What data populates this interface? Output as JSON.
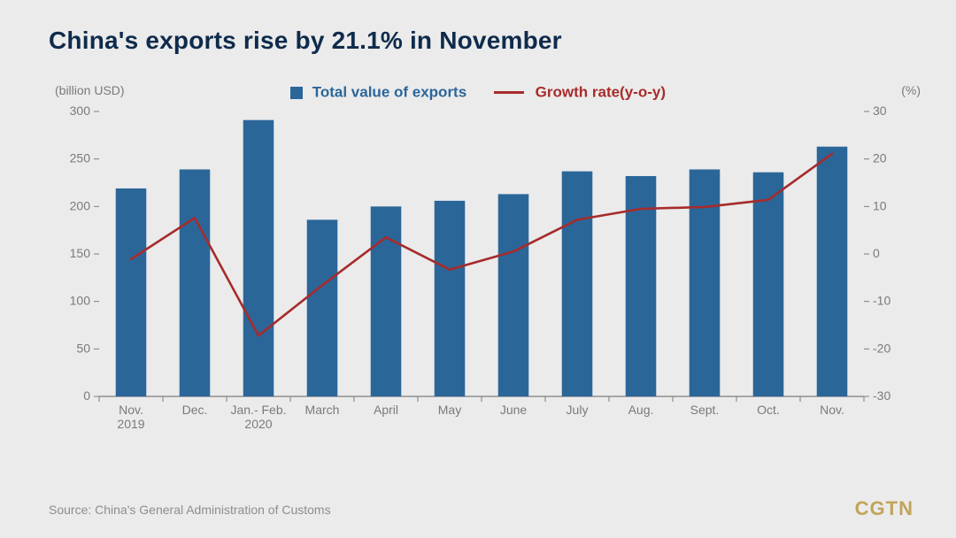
{
  "title": "China's exports rise by 21.1% in November",
  "legend": {
    "bars_label": "Total value of exports",
    "line_label": "Growth rate(y-o-y)",
    "bar_color": "#2b6699",
    "line_color": "#a72b2b"
  },
  "left_axis": {
    "unit_label": "(billion USD)",
    "min": 0,
    "max": 300,
    "tick_step": 50,
    "ticks": [
      0,
      50,
      100,
      150,
      200,
      250,
      300
    ]
  },
  "right_axis": {
    "unit_label": "(%)",
    "min": -30,
    "max": 30,
    "tick_step": 10,
    "ticks": [
      -30,
      -20,
      -10,
      0,
      10,
      20,
      30
    ]
  },
  "chart": {
    "type": "bar+line",
    "categories": [
      "Nov. 2019",
      "Dec.",
      "Jan.- Feb. 2020",
      "March",
      "April",
      "May",
      "June",
      "July",
      "Aug.",
      "Sept.",
      "Oct.",
      "Nov."
    ],
    "bars": [
      219,
      239,
      291,
      186,
      200,
      206,
      213,
      237,
      232,
      239,
      236,
      263
    ],
    "line": [
      -1.1,
      7.6,
      -17.2,
      -6.6,
      3.5,
      -3.3,
      0.5,
      7.2,
      9.5,
      9.9,
      11.4,
      21.1
    ],
    "bar_color": "#2b6699",
    "line_color": "#a72b2b",
    "line_width": 2.6,
    "bar_width_ratio": 0.48,
    "background": "#ebebeb",
    "baseline_color": "#7d7d7d",
    "tick_color": "#7d7d7d",
    "tick_label_color": "#7a7a7a",
    "tick_fontsize": 14,
    "category_fontsize": 14
  },
  "source": "Source: China's General Administration of Customs",
  "brand": "CGTN"
}
